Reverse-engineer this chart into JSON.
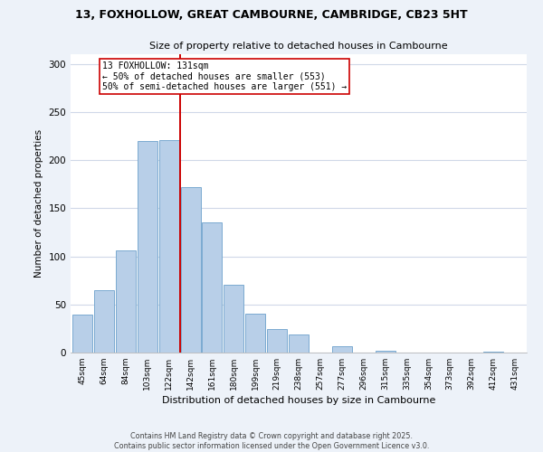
{
  "title1": "13, FOXHOLLOW, GREAT CAMBOURNE, CAMBRIDGE, CB23 5HT",
  "title2": "Size of property relative to detached houses in Cambourne",
  "xlabel": "Distribution of detached houses by size in Cambourne",
  "ylabel": "Number of detached properties",
  "categories": [
    "45sqm",
    "64sqm",
    "84sqm",
    "103sqm",
    "122sqm",
    "142sqm",
    "161sqm",
    "180sqm",
    "199sqm",
    "219sqm",
    "238sqm",
    "257sqm",
    "277sqm",
    "296sqm",
    "315sqm",
    "335sqm",
    "354sqm",
    "373sqm",
    "392sqm",
    "412sqm",
    "431sqm"
  ],
  "values": [
    39,
    65,
    106,
    220,
    221,
    172,
    135,
    70,
    40,
    24,
    19,
    0,
    7,
    0,
    2,
    0,
    0,
    0,
    0,
    1,
    0
  ],
  "bar_color": "#b8cfe8",
  "bar_edge_color": "#7aaad0",
  "vline_x": 4.5,
  "vline_label": "13 FOXHOLLOW: 131sqm",
  "annotation_line1": "← 50% of detached houses are smaller (553)",
  "annotation_line2": "50% of semi-detached houses are larger (551) →",
  "vline_color": "#cc0000",
  "ylim": [
    0,
    310
  ],
  "yticks": [
    0,
    50,
    100,
    150,
    200,
    250,
    300
  ],
  "footer1": "Contains HM Land Registry data © Crown copyright and database right 2025.",
  "footer2": "Contains public sector information licensed under the Open Government Licence v3.0.",
  "background_color": "#edf2f9",
  "plot_bg_color": "#ffffff",
  "grid_color": "#d0d8e8"
}
